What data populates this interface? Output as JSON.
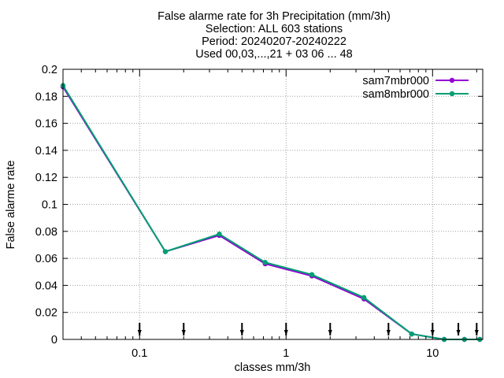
{
  "chart_data": {
    "type": "line",
    "title_lines": [
      "False alarme rate  for 3h Precipitation (mm/3h)",
      "Selection: ALL    603 stations",
      "Period: 20240207-20240222",
      "Used 00,03,...,21 + 03 06 ... 48"
    ],
    "xlabel": "classes mm/3h",
    "ylabel": "False alarme rate",
    "x_scale": "log",
    "xlim": [
      0.03,
      22
    ],
    "ylim": [
      0,
      0.2
    ],
    "x_ticks": [
      {
        "value": 0.1,
        "label": "0.1"
      },
      {
        "value": 1,
        "label": "1"
      },
      {
        "value": 10,
        "label": "10"
      }
    ],
    "y_ticks": [
      {
        "value": 0,
        "label": "0"
      },
      {
        "value": 0.02,
        "label": "0.02"
      },
      {
        "value": 0.04,
        "label": "0.04"
      },
      {
        "value": 0.06,
        "label": "0.06"
      },
      {
        "value": 0.08,
        "label": "0.08"
      },
      {
        "value": 0.1,
        "label": "0.1"
      },
      {
        "value": 0.12,
        "label": "0.12"
      },
      {
        "value": 0.14,
        "label": "0.14"
      },
      {
        "value": 0.16,
        "label": "0.16"
      },
      {
        "value": 0.18,
        "label": "0.18"
      },
      {
        "value": 0.2,
        "label": "0.2"
      }
    ],
    "grid": true,
    "legend_position": "top-right",
    "threshold_markers": [
      0.1,
      0.2,
      0.5,
      1,
      2,
      5,
      10,
      15,
      20
    ],
    "series": [
      {
        "name": "sam7mbr000",
        "color": "#9400d3",
        "x": [
          0.03,
          0.15,
          0.35,
          0.72,
          1.5,
          3.4,
          7.2,
          12,
          16.5,
          21
        ],
        "y": [
          0.187,
          0.065,
          0.077,
          0.056,
          0.047,
          0.03,
          0.004,
          0.0,
          0.0,
          0.0
        ]
      },
      {
        "name": "sam8mbr000",
        "color": "#009e73",
        "x": [
          0.03,
          0.15,
          0.35,
          0.72,
          1.5,
          3.4,
          7.2,
          12,
          16.5,
          21
        ],
        "y": [
          0.188,
          0.065,
          0.078,
          0.057,
          0.048,
          0.031,
          0.004,
          0.0,
          0.0,
          0.0
        ]
      }
    ]
  }
}
